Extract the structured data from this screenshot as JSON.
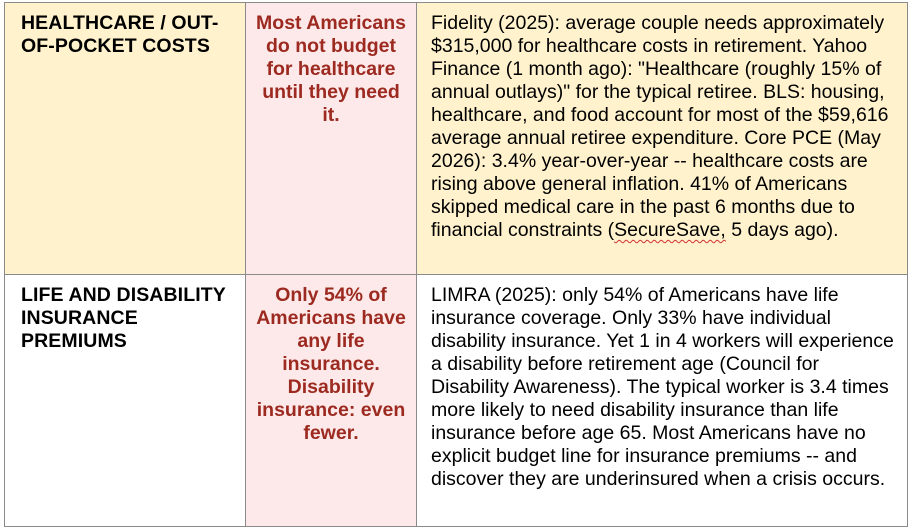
{
  "rows": [
    {
      "topic": "HEALTHCARE / OUT-OF-POCKET COSTS",
      "key_point": "Most Americans do not budget for healthcare until they need it.",
      "detail_before_flag": "Fidelity (2025): average couple needs approximately $315,000 for healthcare costs in retirement. Yahoo Finance (1 month ago): \"Healthcare (roughly 15% of annual outlays)\" for the typical retiree. BLS: housing, healthcare, and food account for most of the $59,616 average annual retiree expenditure. Core PCE (May 2026): 3.4% year-over-year -- healthcare costs are rising above general inflation. 41% of Americans skipped medical care in the past 6 months due to financial constraints (",
      "detail_flagged_word": "SecureSave,",
      "detail_after_flag": " 5 days ago)."
    },
    {
      "topic": "LIFE AND DISABILITY INSURANCE PREMIUMS",
      "key_point": "Only 54% of Americans have any life insurance. Disability insurance: even fewer.",
      "detail": "LIMRA (2025): only 54% of Americans have life insurance coverage. Only 33% have individual disability insurance. Yet 1 in 4 workers will experience a disability before retirement age (Council for Disability Awareness). The typical worker is 3.4 times more likely to need disability insurance than life insurance before age 65. Most Americans have no explicit budget line for insurance premiums -- and discover they are underinsured when a crisis occurs."
    }
  ],
  "colors": {
    "highlight_yellow": "#fff2cc",
    "highlight_pink": "#fde9e9",
    "key_text": "#9c2a20",
    "spellcheck": "#d03030"
  }
}
